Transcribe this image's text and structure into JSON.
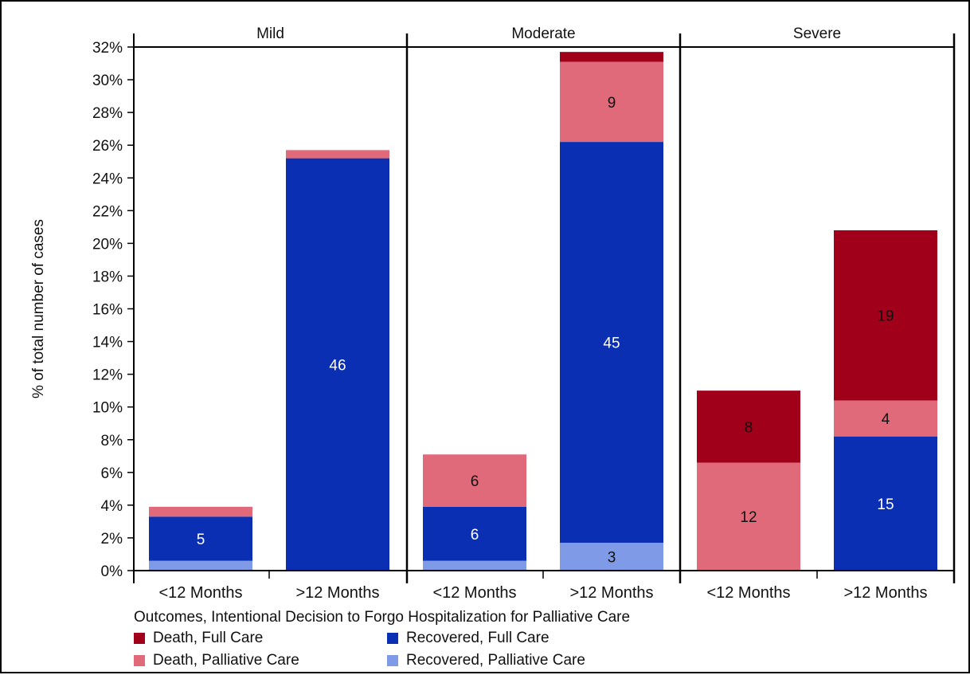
{
  "chart_data": {
    "type": "bar",
    "stacked": true,
    "ylabel": "% of total number of cases",
    "xlabel": "Outcomes, Intentional Decision to Forgo Hospitalization for Palliative Care",
    "ylim": [
      0,
      32
    ],
    "yticks": [
      "0%",
      "2%",
      "4%",
      "6%",
      "8%",
      "10%",
      "12%",
      "14%",
      "16%",
      "18%",
      "20%",
      "22%",
      "24%",
      "26%",
      "28%",
      "30%",
      "32%"
    ],
    "panels": [
      "Mild",
      "Moderate",
      "Severe"
    ],
    "categories": [
      "<12 Months",
      ">12 Months",
      "<12 Months",
      ">12 Months",
      "<12 Months",
      ">12 Months"
    ],
    "category_panel": [
      0,
      0,
      1,
      1,
      2,
      2
    ],
    "series": [
      {
        "name": "Recovered, Palliative Care",
        "color": "#7f9be8",
        "values": [
          0.6,
          0.0,
          0.6,
          1.7,
          0.0,
          0.0
        ],
        "labels": [
          "",
          "",
          "",
          "3",
          "",
          ""
        ]
      },
      {
        "name": "Recovered, Full Care",
        "color": "#0a2fb3",
        "values": [
          2.7,
          25.2,
          3.3,
          24.5,
          0.0,
          8.2
        ],
        "labels": [
          "5",
          "46",
          "6",
          "45",
          "",
          "15"
        ]
      },
      {
        "name": "Death, Palliative Care",
        "color": "#e0697a",
        "values": [
          0.6,
          0.5,
          3.2,
          4.9,
          6.6,
          2.2
        ],
        "labels": [
          "",
          "",
          "6",
          "9",
          "12",
          "4"
        ]
      },
      {
        "name": "Death, Full Care",
        "color": "#a0001a",
        "values": [
          0.0,
          0.0,
          0.0,
          0.6,
          4.4,
          10.4
        ],
        "labels": [
          "",
          "",
          "",
          "",
          "8",
          "19"
        ]
      }
    ],
    "legend_order": [
      "Death, Full Care",
      "Recovered, Full Care",
      "Death, Palliative Care",
      "Recovered, Palliative Care"
    ],
    "grid": false,
    "legend_position": "bottom-left"
  }
}
